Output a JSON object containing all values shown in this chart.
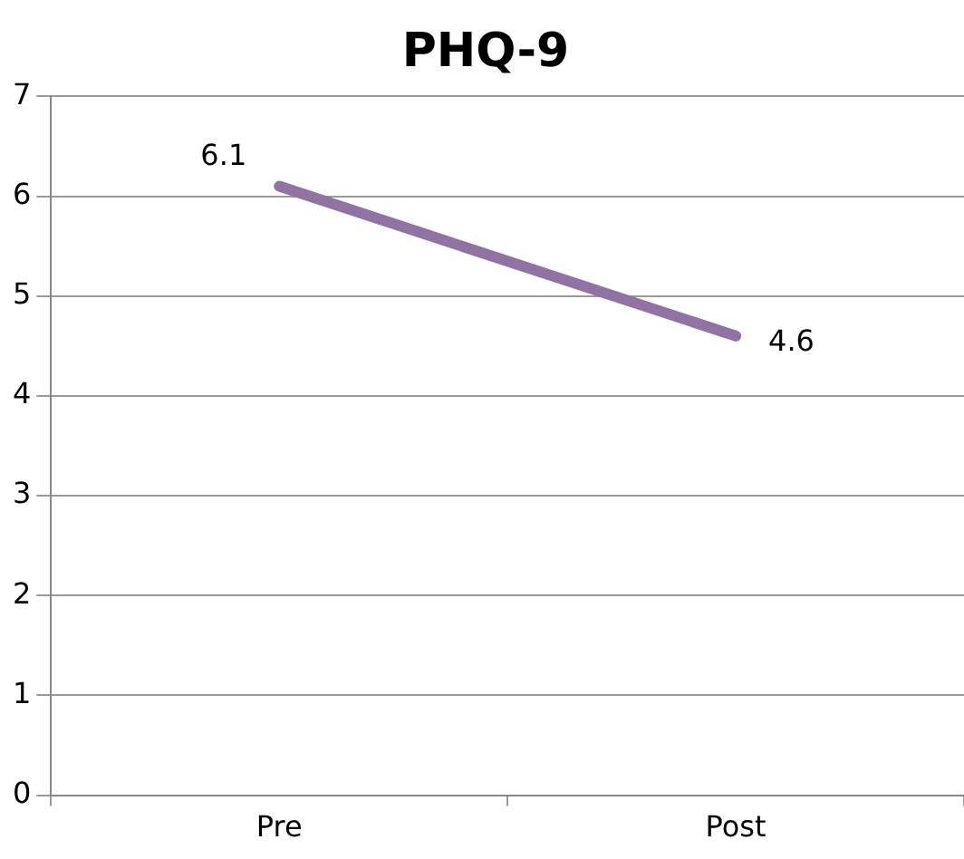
{
  "chart_data": {
    "type": "line",
    "title": "PHQ-9",
    "categories": [
      "Pre",
      "Post"
    ],
    "series": [
      {
        "color": "#9173a3",
        "values": [
          6.1,
          4.6
        ]
      }
    ],
    "ylim": [
      0,
      7
    ],
    "yticks": [
      0,
      1,
      2,
      3,
      4,
      5,
      6,
      7
    ],
    "grid": "y",
    "legend": false,
    "marker": "none",
    "line_style": "solid",
    "data_labels": true
  }
}
